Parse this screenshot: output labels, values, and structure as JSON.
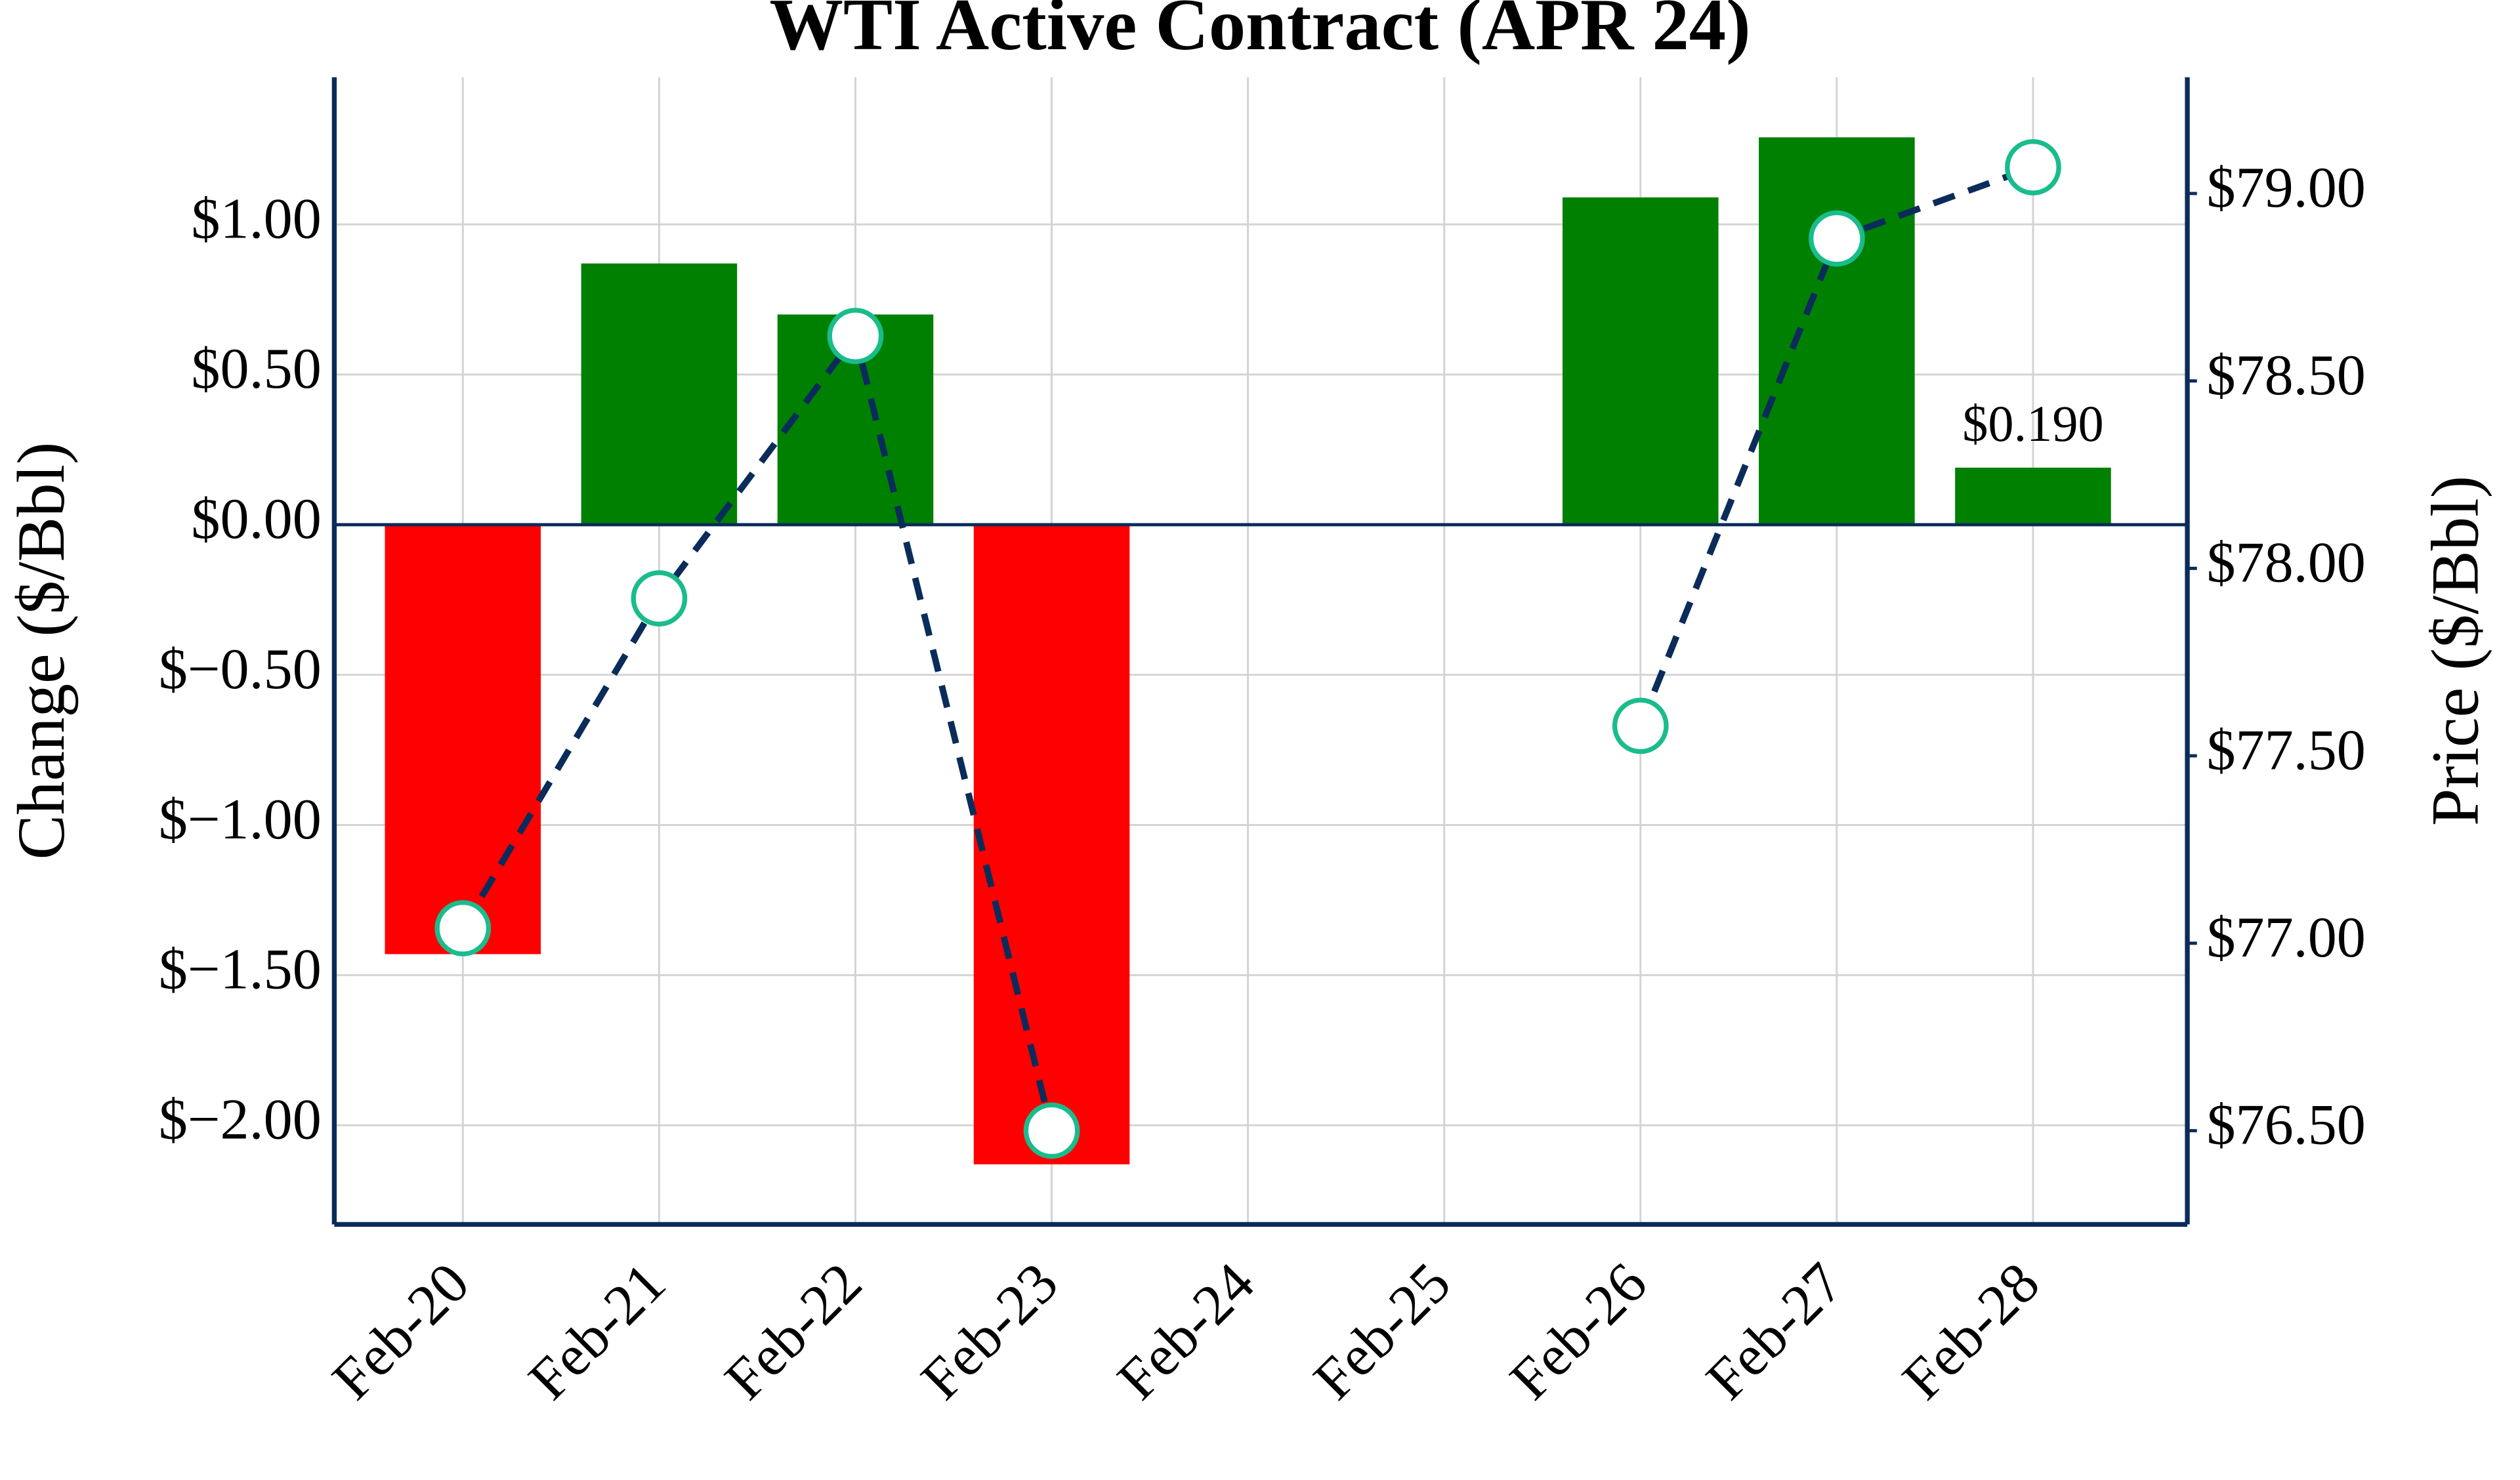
{
  "chart_data": {
    "type": "bar",
    "title": "WTI Active Contract (APR 24)",
    "y_label": "Change ($/Bbl)",
    "y2_label": "Price ($/Bbl)",
    "categories": [
      "Feb-20",
      "Feb-21",
      "Feb-22",
      "Feb-23",
      "Feb-24",
      "Feb-25",
      "Feb-26",
      "Feb-27",
      "Feb-28"
    ],
    "series": [
      {
        "type": "bar",
        "axis": "y",
        "values": [
          -1.43,
          0.87,
          0.7,
          -2.13,
          null,
          null,
          1.09,
          1.29,
          0.19
        ],
        "value_labels": [
          null,
          null,
          null,
          null,
          null,
          null,
          null,
          null,
          "$0.190"
        ],
        "positive_color": "#008000",
        "negative_color": "#ff0000"
      },
      {
        "type": "line",
        "axis": "y2",
        "values": [
          77.04,
          77.92,
          78.62,
          76.5,
          null,
          null,
          77.58,
          78.88,
          79.07
        ],
        "color": "#0b2c5a",
        "marker_color": "#ffffff",
        "marker_edge_color": "#1abc8c"
      }
    ],
    "ylim": [
      -2.33,
      1.49
    ],
    "yticks": [
      {
        "value": -2.0,
        "label": "$−2.00"
      },
      {
        "value": -1.5,
        "label": "$−1.50"
      },
      {
        "value": -1.0,
        "label": "$−1.00"
      },
      {
        "value": -0.5,
        "label": "$−0.50"
      },
      {
        "value": 0.0,
        "label": "$0.00"
      },
      {
        "value": 0.5,
        "label": "$0.50"
      },
      {
        "value": 1.0,
        "label": "$1.00"
      }
    ],
    "y2lim": [
      76.25,
      79.31
    ],
    "y2ticks": [
      {
        "value": 76.5,
        "label": "$76.50"
      },
      {
        "value": 77.0,
        "label": "$77.00"
      },
      {
        "value": 77.5,
        "label": "$77.50"
      },
      {
        "value": 78.0,
        "label": "$78.00"
      },
      {
        "value": 78.5,
        "label": "$78.50"
      },
      {
        "value": 79.0,
        "label": "$79.00"
      }
    ],
    "grid": true,
    "axis_color": "#0b2c5a"
  }
}
